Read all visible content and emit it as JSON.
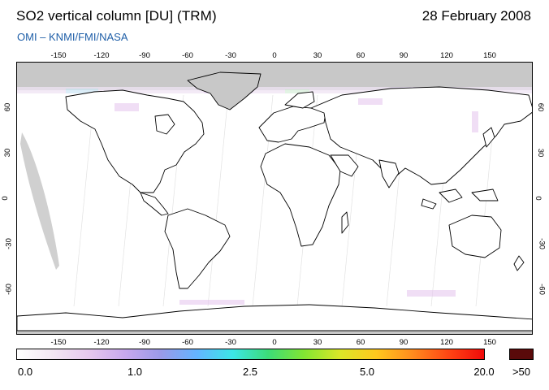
{
  "header": {
    "title": "SO2 vertical column [DU] (TRM)",
    "date": "28 February 2008",
    "credit": "OMI  –  KNMI/FMI/NASA"
  },
  "map": {
    "projection": "equirectangular",
    "lon_range": [
      -180,
      180
    ],
    "lat_range": [
      -90,
      90
    ],
    "lon_ticks": [
      "-150",
      "-120",
      "-90",
      "-60",
      "-30",
      "0",
      "30",
      "60",
      "90",
      "120",
      "150"
    ],
    "lat_ticks": [
      "60",
      "30",
      "0",
      "-30",
      "-60"
    ],
    "no_data_color": "#c8c8c8",
    "coastline_color": "#000000",
    "background_color": "#ffffff"
  },
  "colorbar": {
    "labels": [
      "0.0",
      "1.0",
      "2.5",
      "5.0",
      "20.0",
      ">50"
    ],
    "colors": [
      "#ffffff",
      "#f2e6f2",
      "#e6c8ee",
      "#c8a8ee",
      "#9a9ae8",
      "#64b4ff",
      "#3ce6e6",
      "#3cdc78",
      "#82e632",
      "#dce628",
      "#ffc81e",
      "#ff8c1e",
      "#ff4614",
      "#f00a0a"
    ],
    "over_color": "#5a0a0a"
  }
}
